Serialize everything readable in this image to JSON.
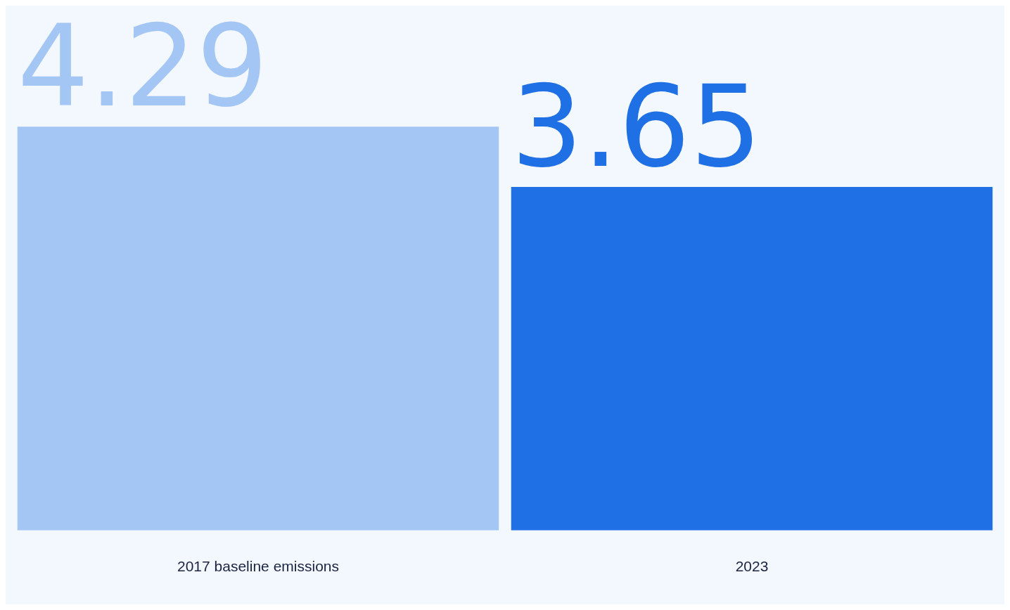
{
  "chart_data": {
    "type": "bar",
    "categories": [
      "2017 baseline emissions",
      "2023"
    ],
    "values": [
      4.29,
      3.65
    ],
    "colors": [
      "#a4c6f4",
      "#1f6fe5"
    ],
    "data_labels": true,
    "grid": false,
    "legend": false
  }
}
